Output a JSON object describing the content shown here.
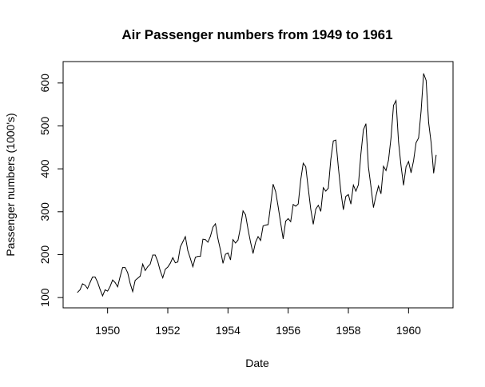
{
  "chart_data": {
    "type": "line",
    "title": "Air Passenger numbers from 1949 to 1961",
    "xlabel": "Date",
    "ylabel": "Passenger numbers (1000's)",
    "xlim": [
      1949,
      1961
    ],
    "ylim": [
      104,
      622
    ],
    "x_ticks": [
      1950,
      1952,
      1954,
      1956,
      1958,
      1960
    ],
    "y_ticks": [
      100,
      200,
      300,
      400,
      500,
      600
    ],
    "grid": false,
    "legend": "none",
    "line_color": "#000000",
    "x_start": 1949.0,
    "x_step": 0.0833333,
    "values": [
      112,
      118,
      132,
      129,
      121,
      135,
      148,
      148,
      136,
      119,
      104,
      118,
      115,
      126,
      141,
      135,
      125,
      149,
      170,
      170,
      158,
      133,
      114,
      140,
      145,
      150,
      178,
      163,
      172,
      178,
      199,
      199,
      184,
      162,
      146,
      166,
      171,
      180,
      193,
      181,
      183,
      218,
      230,
      242,
      209,
      191,
      172,
      194,
      196,
      196,
      236,
      235,
      229,
      243,
      264,
      272,
      237,
      211,
      180,
      201,
      204,
      188,
      235,
      227,
      234,
      264,
      302,
      293,
      259,
      229,
      203,
      229,
      242,
      233,
      267,
      269,
      270,
      315,
      364,
      347,
      312,
      274,
      237,
      278,
      284,
      277,
      317,
      313,
      318,
      374,
      413,
      405,
      355,
      306,
      271,
      306,
      315,
      301,
      356,
      348,
      355,
      422,
      465,
      467,
      404,
      347,
      305,
      336,
      340,
      318,
      362,
      348,
      363,
      435,
      491,
      505,
      404,
      359,
      310,
      337,
      360,
      342,
      406,
      396,
      420,
      472,
      548,
      559,
      463,
      407,
      362,
      405,
      417,
      391,
      419,
      461,
      472,
      535,
      622,
      606,
      508,
      461,
      390,
      432
    ]
  }
}
